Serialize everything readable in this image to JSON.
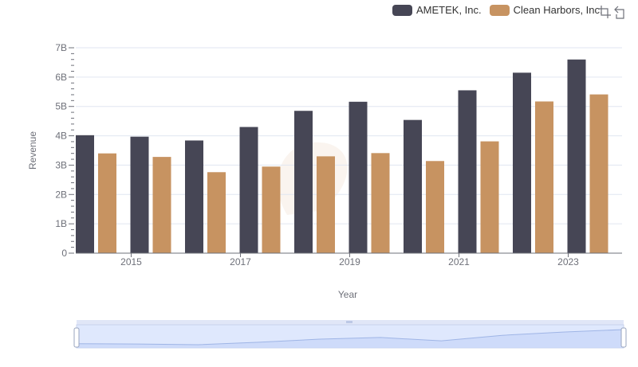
{
  "legend": {
    "items": [
      {
        "label": "AMETEK, Inc.",
        "color": "#464655"
      },
      {
        "label": "Clean Harbors, Inc.",
        "color": "#c79361"
      }
    ]
  },
  "toolbox": {
    "icons": [
      "zoom-select-icon",
      "zoom-reset-icon"
    ]
  },
  "axes": {
    "ylabel": "Revenue",
    "xlabel": "Year"
  },
  "chart_data": {
    "type": "bar",
    "xlabel": "Year",
    "ylabel": "Revenue",
    "categories": [
      "2014",
      "2015",
      "2016",
      "2017",
      "2018",
      "2019",
      "2020",
      "2021",
      "2022",
      "2023"
    ],
    "x_tick_labels": [
      "2015",
      "2017",
      "2019",
      "2021",
      "2023"
    ],
    "y_tick_labels": [
      "0",
      "1B",
      "2B",
      "3B",
      "4B",
      "5B",
      "6B",
      "7B"
    ],
    "ylim": [
      0,
      7000000000
    ],
    "grid": true,
    "legend_position": "top-right",
    "series": [
      {
        "name": "AMETEK, Inc.",
        "color": "#464655",
        "values": [
          4020000000,
          3970000000,
          3840000000,
          4300000000,
          4850000000,
          5160000000,
          4540000000,
          5550000000,
          6150000000,
          6600000000
        ]
      },
      {
        "name": "Clean Harbors, Inc.",
        "color": "#c79361",
        "values": [
          3400000000,
          3280000000,
          2760000000,
          2950000000,
          3300000000,
          3410000000,
          3140000000,
          3810000000,
          5170000000,
          5410000000
        ]
      }
    ]
  }
}
